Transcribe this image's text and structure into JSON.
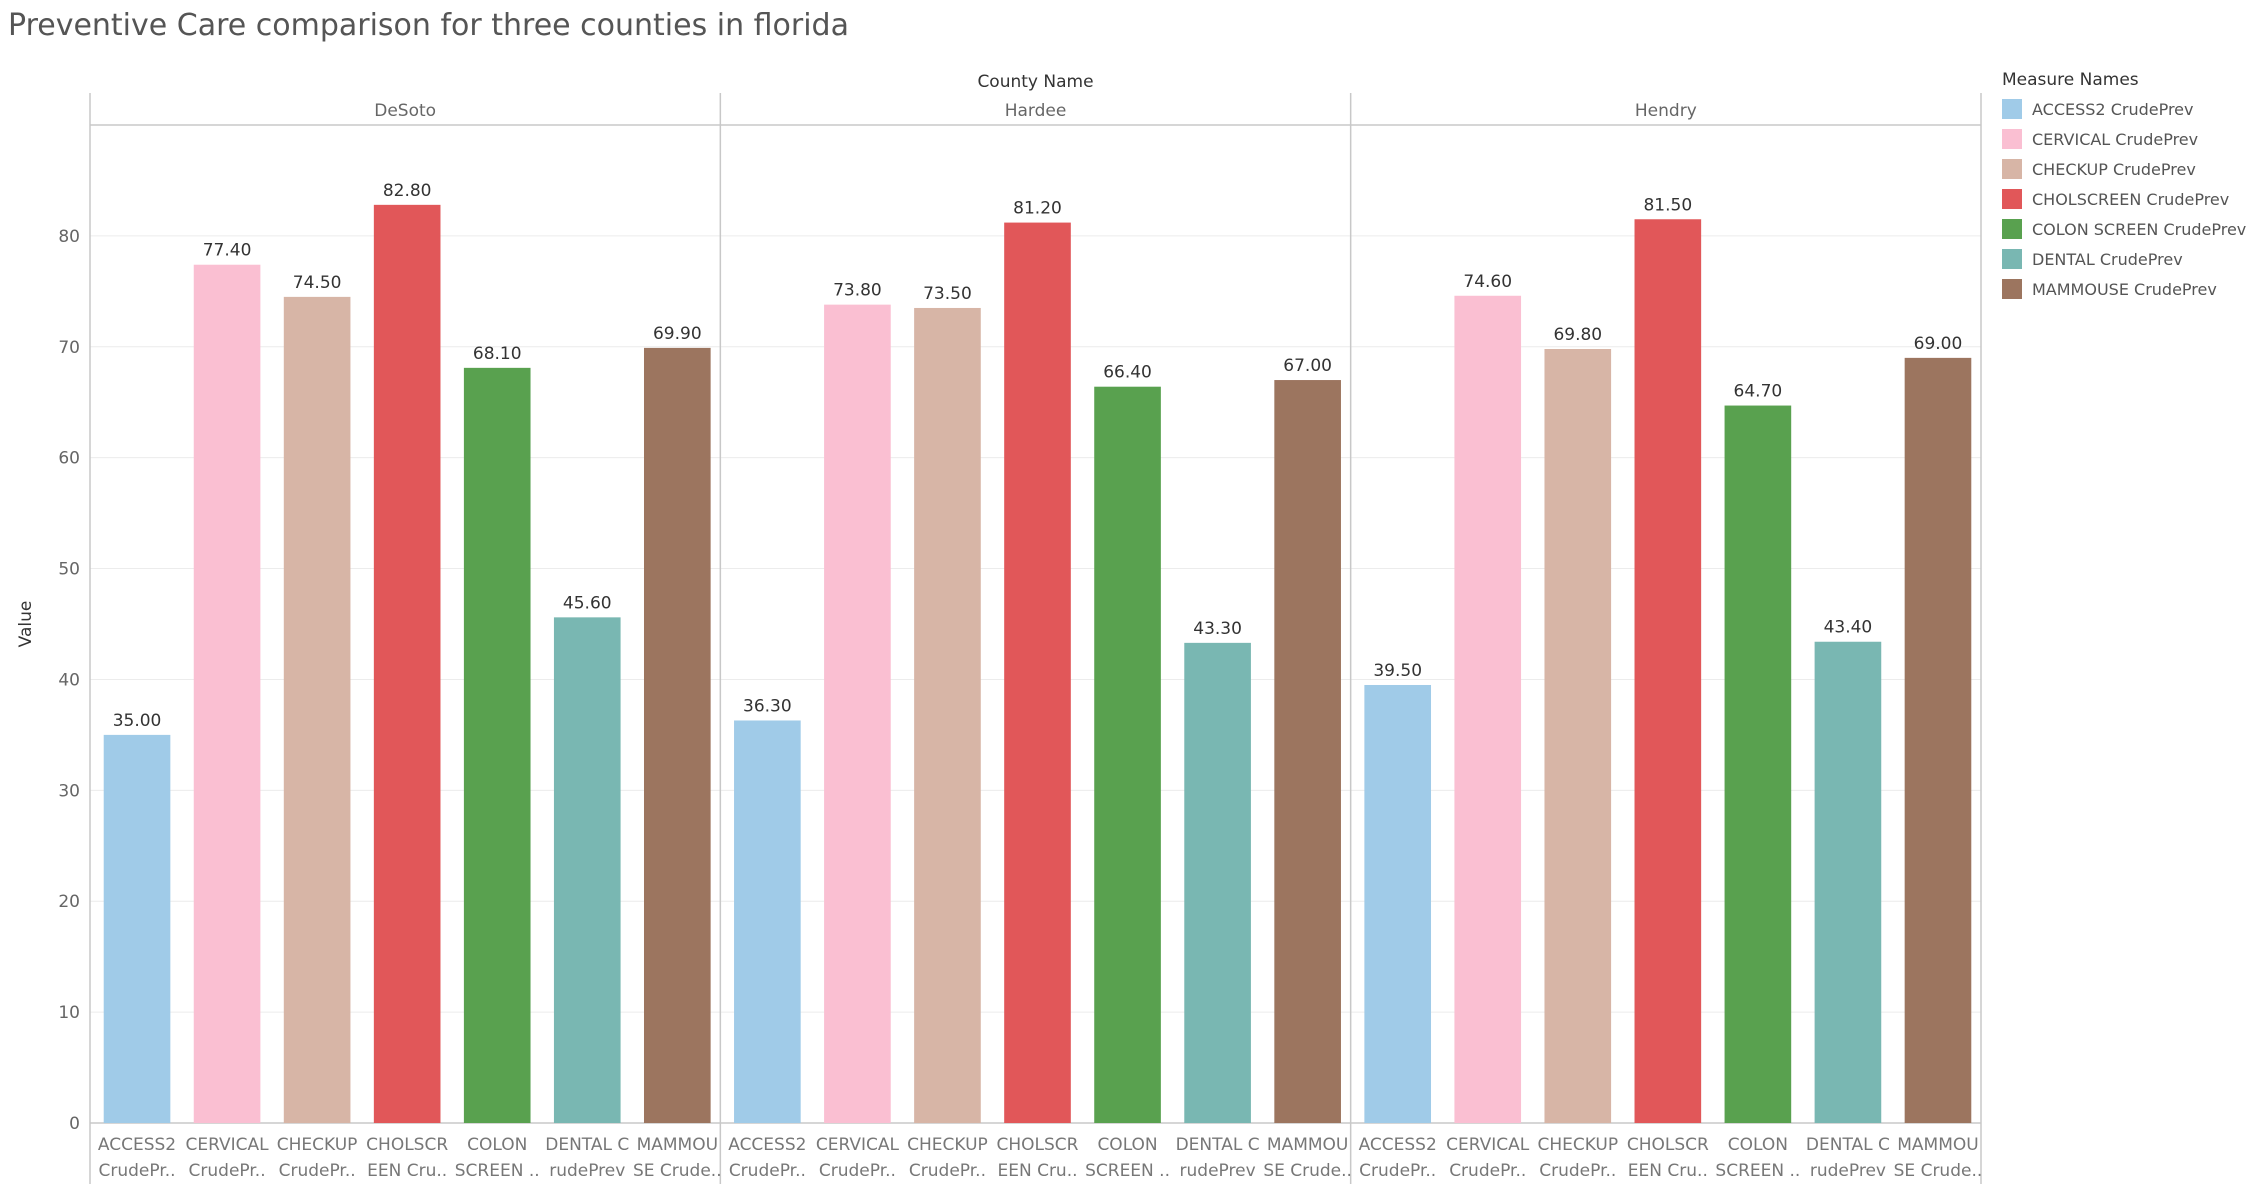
{
  "chart_data": {
    "type": "bar",
    "title": "Preventive Care comparison for three counties in florida",
    "facet_title": "County Name",
    "ylabel": "Value",
    "ylim": [
      0,
      90
    ],
    "yticks": [
      0,
      10,
      20,
      30,
      40,
      50,
      60,
      70,
      80
    ],
    "grid": true,
    "legend_title": "Measure Names",
    "legend_position": "right",
    "value_format": "2 decimals",
    "measures": [
      {
        "name": "ACCESS2 CrudePrev",
        "tick_label": [
          "ACCESS2",
          "CrudePr.."
        ],
        "color": "#a0cbe8"
      },
      {
        "name": "CERVICAL CrudePrev",
        "tick_label": [
          "CERVICAL",
          "CrudePr.."
        ],
        "color": "#fabfd2"
      },
      {
        "name": "CHECKUP CrudePrev",
        "tick_label": [
          "CHECKUP",
          "CrudePr.."
        ],
        "color": "#d7b5a6"
      },
      {
        "name": "CHOLSCREEN CrudePrev",
        "tick_label": [
          "CHOLSCR",
          "EEN Cru.."
        ],
        "color": "#e15759"
      },
      {
        "name": "COLON SCREEN CrudePrev",
        "tick_label": [
          "COLON",
          "SCREEN .."
        ],
        "color": "#59a14f"
      },
      {
        "name": "DENTAL CrudePrev",
        "tick_label": [
          "DENTAL C",
          "rudePrev"
        ],
        "color": "#79b7b2"
      },
      {
        "name": "MAMMOUSE CrudePrev",
        "tick_label": [
          "MAMMOU",
          "SE Crude.."
        ],
        "color": "#9c755f"
      }
    ],
    "series": [
      {
        "name": "DeSoto",
        "values": [
          35.0,
          77.4,
          74.5,
          82.8,
          68.1,
          45.6,
          69.9
        ]
      },
      {
        "name": "Hardee",
        "values": [
          36.3,
          73.8,
          73.5,
          81.2,
          66.4,
          43.3,
          67.0
        ]
      },
      {
        "name": "Hendry",
        "values": [
          39.5,
          74.6,
          69.8,
          81.5,
          64.7,
          43.4,
          69.0
        ]
      }
    ]
  }
}
